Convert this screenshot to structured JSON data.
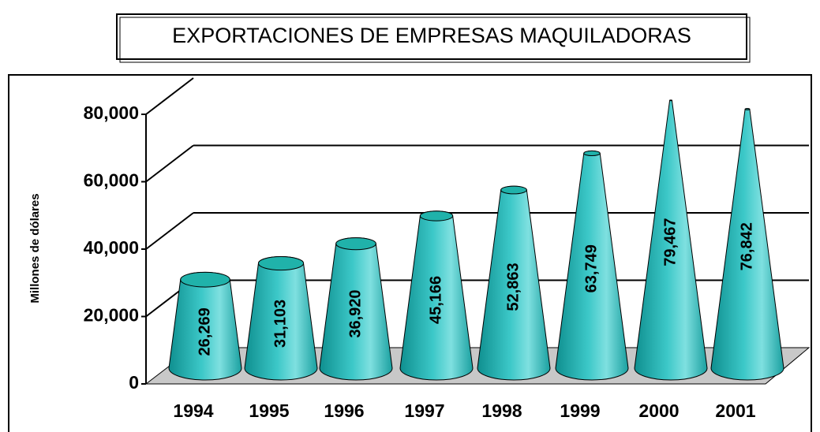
{
  "chart_data": {
    "type": "bar",
    "title": "EXPORTACIONES DE EMPRESAS MAQUILADORAS",
    "y_label": "Millones de dólares",
    "categories": [
      "1994",
      "1995",
      "1996",
      "1997",
      "1998",
      "1999",
      "2000",
      "2001"
    ],
    "values": [
      26269,
      31103,
      36920,
      45166,
      52863,
      63749,
      79467,
      76842
    ],
    "value_labels": [
      "26,269",
      "31,103",
      "36,920",
      "45,166",
      "52,863",
      "63,749",
      "79,467",
      "76,842"
    ],
    "color": "#20b2aa",
    "ylim": [
      0,
      80000
    ],
    "yticks": [
      {
        "value": 0,
        "label": "0"
      },
      {
        "value": 20000,
        "label": "20,000"
      },
      {
        "value": 40000,
        "label": "40,000"
      },
      {
        "value": 60000,
        "label": "60,000"
      },
      {
        "value": 80000,
        "label": "80,000"
      }
    ],
    "grid": true
  }
}
